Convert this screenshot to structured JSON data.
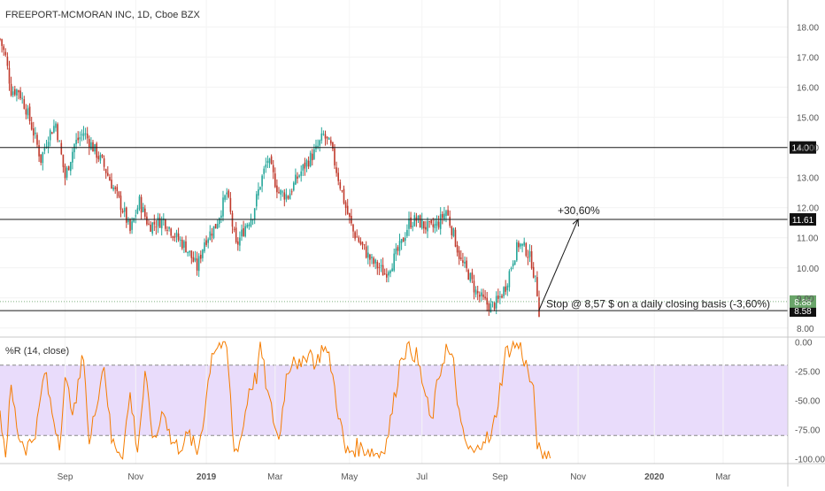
{
  "header": {
    "title": "FREEPORT-MCMORAN INC, 1D, Cboe BZX"
  },
  "indicator": {
    "label": "%R (14, close)"
  },
  "colors": {
    "up": "#26a69a",
    "down": "#c0392b",
    "line": "#1a1a1a",
    "wr": "#f57c00",
    "band": "#e9dcfb",
    "accent_badge": "#6aa56a"
  },
  "chart_data": [
    {
      "type": "candlestick",
      "title": "FREEPORT-MCMORAN INC, 1D, Cboe BZX",
      "ylim": [
        7.7,
        18.9
      ],
      "xlim": [
        0,
        440
      ],
      "y_ticks": [
        "8.00",
        "9.00",
        "10.00",
        "11.00",
        "12.00",
        "13.00",
        "14.00",
        "15.00",
        "16.00",
        "17.00",
        "18.00"
      ],
      "x_ticks": [
        {
          "label": "Sep",
          "t": 35
        },
        {
          "label": "Nov",
          "t": 73
        },
        {
          "label": "2019",
          "t": 111
        },
        {
          "label": "Mar",
          "t": 148
        },
        {
          "label": "May",
          "t": 188
        },
        {
          "label": "Jul",
          "t": 227
        },
        {
          "label": "Sep",
          "t": 269
        },
        {
          "label": "Nov",
          "t": 311
        },
        {
          "label": "2020",
          "t": 352
        },
        {
          "label": "Mar",
          "t": 389
        }
      ],
      "key_path": [
        [
          0,
          17.6
        ],
        [
          3,
          17.0
        ],
        [
          6,
          15.9
        ],
        [
          10,
          15.9
        ],
        [
          14,
          15.3
        ],
        [
          19,
          14.3
        ],
        [
          22,
          13.6
        ],
        [
          26,
          14.4
        ],
        [
          30,
          14.8
        ],
        [
          35,
          13.0
        ],
        [
          40,
          14.1
        ],
        [
          45,
          14.5
        ],
        [
          50,
          14.0
        ],
        [
          55,
          13.5
        ],
        [
          60,
          12.8
        ],
        [
          67,
          11.8
        ],
        [
          70,
          11.2
        ],
        [
          75,
          12.2
        ],
        [
          80,
          11.4
        ],
        [
          88,
          11.6
        ],
        [
          95,
          11.0
        ],
        [
          100,
          10.7
        ],
        [
          106,
          10.0
        ],
        [
          110,
          10.9
        ],
        [
          116,
          11.4
        ],
        [
          122,
          12.5
        ],
        [
          127,
          10.7
        ],
        [
          132,
          11.4
        ],
        [
          136,
          11.8
        ],
        [
          140,
          12.8
        ],
        [
          144,
          13.6
        ],
        [
          150,
          12.5
        ],
        [
          155,
          12.4
        ],
        [
          160,
          13.0
        ],
        [
          165,
          13.5
        ],
        [
          170,
          13.9
        ],
        [
          174,
          14.4
        ],
        [
          178,
          14.0
        ],
        [
          182,
          13.0
        ],
        [
          186,
          12.0
        ],
        [
          190,
          11.2
        ],
        [
          196,
          10.6
        ],
        [
          200,
          10.2
        ],
        [
          204,
          10.0
        ],
        [
          207,
          9.8
        ],
        [
          212,
          10.3
        ],
        [
          216,
          10.8
        ],
        [
          220,
          11.5
        ],
        [
          224,
          11.6
        ],
        [
          228,
          11.4
        ],
        [
          232,
          11.3
        ],
        [
          236,
          11.5
        ],
        [
          240,
          11.9
        ],
        [
          244,
          11.1
        ],
        [
          248,
          10.2
        ],
        [
          252,
          9.8
        ],
        [
          256,
          9.2
        ],
        [
          260,
          8.9
        ],
        [
          264,
          8.7
        ],
        [
          268,
          8.9
        ],
        [
          272,
          9.4
        ],
        [
          276,
          10.3
        ],
        [
          279,
          10.8
        ],
        [
          283,
          10.6
        ],
        [
          286,
          10.2
        ],
        [
          289,
          9.2
        ],
        [
          290,
          8.58
        ]
      ],
      "levels": [
        {
          "value": 14.0,
          "label": "14.00"
        },
        {
          "value": 11.61,
          "label": "11.61"
        },
        {
          "value": 8.58,
          "label": "8.58"
        }
      ],
      "last_price": {
        "value": 8.88,
        "label": "8.88"
      },
      "annotations": [
        {
          "text": "+30,60%",
          "t": 300,
          "y": 11.9
        },
        {
          "text": "Stop @ 8,57 $ on a daily closing basis (-3,60%)",
          "t": 290,
          "y": 8.8
        }
      ],
      "projection": {
        "from_t": 290,
        "from_y": 8.6,
        "to_t": 311,
        "to_y": 11.61
      }
    },
    {
      "type": "line",
      "title": "%R (14, close)",
      "ylim": [
        -104,
        4
      ],
      "y_ticks": [
        "0.00",
        "-25.00",
        "-50.00",
        "-75.00",
        "-100.00"
      ],
      "band": [
        -20,
        -80
      ],
      "key_path": [
        [
          0,
          -60
        ],
        [
          3,
          -95
        ],
        [
          6,
          -40
        ],
        [
          10,
          -80
        ],
        [
          14,
          -90
        ],
        [
          17,
          -85
        ],
        [
          20,
          -70
        ],
        [
          24,
          -25
        ],
        [
          28,
          -60
        ],
        [
          32,
          -85
        ],
        [
          35,
          -35
        ],
        [
          40,
          -60
        ],
        [
          45,
          -8
        ],
        [
          48,
          -90
        ],
        [
          52,
          -50
        ],
        [
          56,
          -18
        ],
        [
          60,
          -85
        ],
        [
          66,
          -95
        ],
        [
          70,
          -45
        ],
        [
          74,
          -92
        ],
        [
          78,
          -30
        ],
        [
          83,
          -88
        ],
        [
          88,
          -55
        ],
        [
          92,
          -85
        ],
        [
          96,
          -90
        ],
        [
          102,
          -80
        ],
        [
          106,
          -96
        ],
        [
          110,
          -60
        ],
        [
          114,
          -8
        ],
        [
          118,
          -2
        ],
        [
          122,
          -5
        ],
        [
          126,
          -95
        ],
        [
          130,
          -80
        ],
        [
          134,
          -40
        ],
        [
          138,
          -30
        ],
        [
          140,
          -2
        ],
        [
          144,
          -45
        ],
        [
          150,
          -85
        ],
        [
          154,
          -30
        ],
        [
          158,
          -10
        ],
        [
          162,
          -25
        ],
        [
          166,
          -5
        ],
        [
          170,
          -20
        ],
        [
          174,
          -2
        ],
        [
          178,
          -20
        ],
        [
          182,
          -60
        ],
        [
          186,
          -95
        ],
        [
          192,
          -90
        ],
        [
          198,
          -92
        ],
        [
          204,
          -96
        ],
        [
          208,
          -85
        ],
        [
          212,
          -50
        ],
        [
          216,
          -10
        ],
        [
          220,
          -5
        ],
        [
          224,
          -12
        ],
        [
          228,
          -40
        ],
        [
          232,
          -70
        ],
        [
          236,
          -30
        ],
        [
          240,
          -5
        ],
        [
          244,
          -20
        ],
        [
          248,
          -75
        ],
        [
          252,
          -92
        ],
        [
          256,
          -96
        ],
        [
          260,
          -80
        ],
        [
          264,
          -85
        ],
        [
          268,
          -50
        ],
        [
          272,
          -10
        ],
        [
          276,
          -2
        ],
        [
          280,
          -5
        ],
        [
          284,
          -25
        ],
        [
          287,
          -45
        ],
        [
          289,
          -85
        ],
        [
          291,
          -100
        ],
        [
          294,
          -98
        ],
        [
          296,
          -92
        ]
      ]
    }
  ]
}
